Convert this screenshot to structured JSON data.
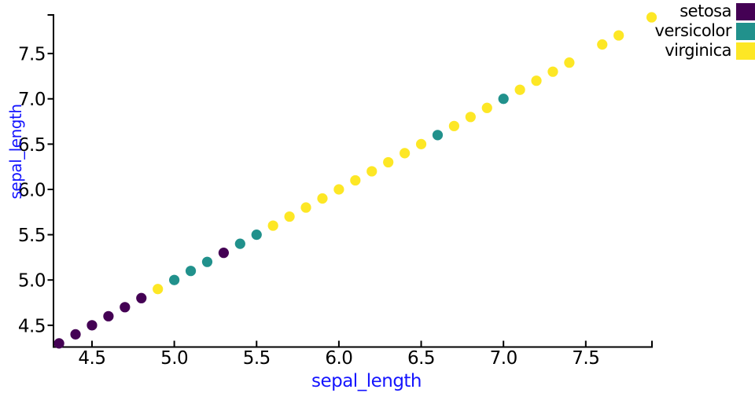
{
  "chart_data": {
    "type": "scatter",
    "title": "",
    "xlabel": "sepal_length",
    "ylabel": "sepal_length",
    "xlim": [
      4.266,
      7.907
    ],
    "ylim": [
      4.26,
      7.935
    ],
    "xticks": [
      4.5,
      5.0,
      5.5,
      6.0,
      6.5,
      7.0,
      7.5
    ],
    "yticks": [
      4.5,
      5.0,
      5.5,
      6.0,
      6.5,
      7.0,
      7.5
    ],
    "tick_decimals": 1,
    "grid": false,
    "marker_radius": 6.6,
    "series": [
      {
        "name": "setosa",
        "color": "#440154",
        "x": [
          4.3,
          4.4,
          4.5,
          4.6,
          4.7,
          4.8,
          5.3
        ],
        "y": [
          4.3,
          4.4,
          4.5,
          4.6,
          4.7,
          4.8,
          5.3
        ]
      },
      {
        "name": "versicolor",
        "color": "#21918c",
        "x": [
          5.0,
          5.1,
          5.2,
          5.4,
          5.5,
          6.6,
          7.0
        ],
        "y": [
          5.0,
          5.1,
          5.2,
          5.4,
          5.5,
          6.6,
          7.0
        ]
      },
      {
        "name": "virginica",
        "color": "#fde725",
        "x": [
          4.9,
          5.6,
          5.7,
          5.8,
          5.9,
          6.0,
          6.1,
          6.2,
          6.3,
          6.4,
          6.5,
          6.7,
          6.8,
          6.9,
          7.1,
          7.2,
          7.3,
          7.4,
          7.6,
          7.7,
          7.9
        ],
        "y": [
          4.9,
          5.6,
          5.7,
          5.8,
          5.9,
          6.0,
          6.1,
          6.2,
          6.3,
          6.4,
          6.5,
          6.7,
          6.8,
          6.9,
          7.1,
          7.2,
          7.3,
          7.4,
          7.6,
          7.7,
          7.9
        ]
      }
    ],
    "legend": {
      "position": "top-right",
      "entries": [
        {
          "label": "setosa",
          "color": "#440154"
        },
        {
          "label": "versicolor",
          "color": "#21918c"
        },
        {
          "label": "virginica",
          "color": "#fde725"
        }
      ]
    },
    "colors": {
      "axis_label": "#1414ff",
      "tick_label": "#000000",
      "spine": "#000000"
    }
  }
}
